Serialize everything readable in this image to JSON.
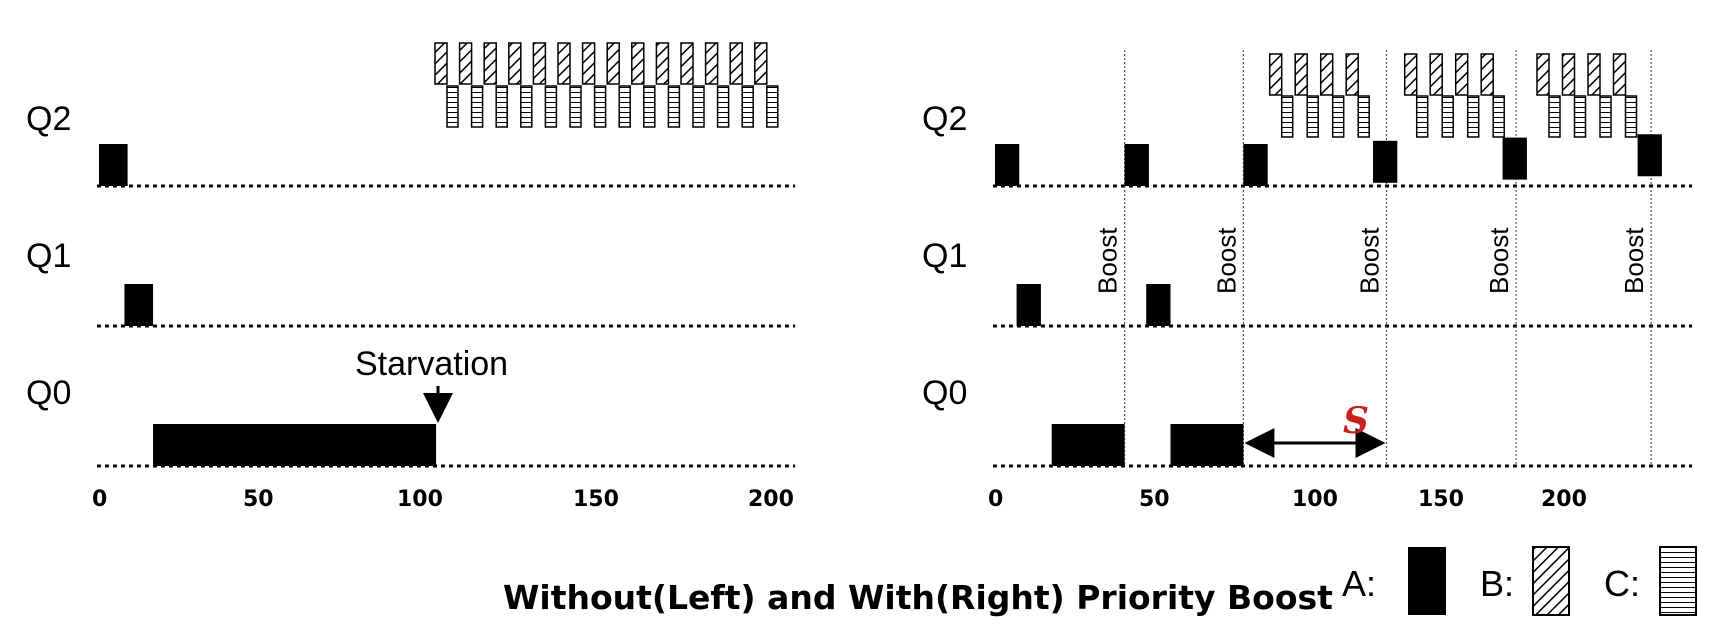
{
  "colors": {
    "job_a": "#000000",
    "accent": "#cc1f1f"
  },
  "panels": [
    {
      "id": "left",
      "queue_labels": [
        "Q2",
        "Q1",
        "Q0"
      ],
      "ticks": [
        "0",
        "50",
        "100",
        "150",
        "200"
      ],
      "annotation": "Starvation",
      "boost_label": "Boost",
      "blocks_a": [
        {
          "queue": "Q2",
          "start": 0,
          "end": 9
        },
        {
          "queue": "Q1",
          "start": 8,
          "end": 17
        },
        {
          "queue": "Q0",
          "start": 17,
          "end": 106
        }
      ],
      "b_count": 14,
      "c_count": 14,
      "b_range": [
        106,
        210
      ],
      "boosts": []
    },
    {
      "id": "right",
      "queue_labels": [
        "Q2",
        "Q1",
        "Q0"
      ],
      "ticks": [
        "0",
        "50",
        "100",
        "150",
        "200"
      ],
      "boost_label": "Boost",
      "blocks_a": [
        {
          "queue": "Q2",
          "start": 0,
          "end": 9
        },
        {
          "queue": "Q1",
          "start": 8,
          "end": 17
        },
        {
          "queue": "Q0",
          "start": 21,
          "end": 48
        },
        {
          "queue": "Q2",
          "start": 48,
          "end": 57
        },
        {
          "queue": "Q1",
          "start": 56,
          "end": 65
        },
        {
          "queue": "Q0",
          "start": 65,
          "end": 92
        },
        {
          "queue": "Q2",
          "start": 92,
          "end": 101
        },
        {
          "queue": "Q2",
          "start": 140,
          "end": 149
        },
        {
          "queue": "Q2",
          "start": 188,
          "end": 197
        },
        {
          "queue": "Q2",
          "start": 238,
          "end": 247
        }
      ],
      "boosts": [
        48,
        92,
        145,
        193,
        243
      ],
      "bc_groups": [
        {
          "start": 101,
          "end": 145
        },
        {
          "start": 151,
          "end": 193
        },
        {
          "start": 200,
          "end": 243
        }
      ],
      "s_label": "S",
      "s_range": [
        92,
        145
      ]
    }
  ],
  "caption": "Without(Left) and With(Right) Priority Boost",
  "legend": [
    {
      "label": "A:",
      "pattern": "solid"
    },
    {
      "label": "B:",
      "pattern": "hatch"
    },
    {
      "label": "C:",
      "pattern": "lines"
    }
  ]
}
